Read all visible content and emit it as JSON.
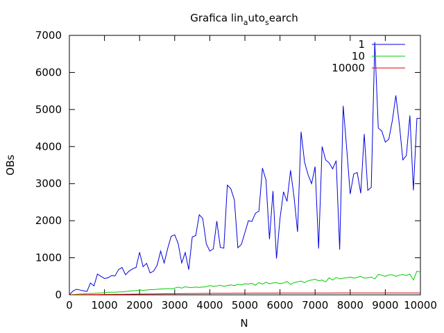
{
  "chart_data": {
    "type": "line",
    "title": "Grafica lin_auto_search",
    "title_parts": {
      "a": "Grafica lin",
      "sub1": "a",
      "b": "uto",
      "sub2": "s",
      "c": "earch"
    },
    "xlabel": "N",
    "ylabel": "OBs",
    "xlim": [
      0,
      10000
    ],
    "ylim": [
      0,
      7000
    ],
    "xticks": [
      0,
      1000,
      2000,
      3000,
      4000,
      5000,
      6000,
      7000,
      8000,
      9000,
      10000
    ],
    "yticks": [
      0,
      1000,
      2000,
      3000,
      4000,
      5000,
      6000,
      7000
    ],
    "grid": false,
    "legend_position": "top-right",
    "x": [
      0,
      100,
      200,
      300,
      400,
      500,
      600,
      700,
      800,
      900,
      1000,
      1100,
      1200,
      1300,
      1400,
      1500,
      1600,
      1700,
      1800,
      1900,
      2000,
      2100,
      2200,
      2300,
      2400,
      2500,
      2600,
      2700,
      2800,
      2900,
      3000,
      3100,
      3200,
      3300,
      3400,
      3500,
      3600,
      3700,
      3800,
      3900,
      4000,
      4100,
      4200,
      4300,
      4400,
      4500,
      4600,
      4700,
      4800,
      4900,
      5000,
      5100,
      5200,
      5300,
      5400,
      5500,
      5600,
      5700,
      5800,
      5900,
      6000,
      6100,
      6200,
      6300,
      6400,
      6500,
      6600,
      6700,
      6800,
      6900,
      7000,
      7100,
      7200,
      7300,
      7400,
      7500,
      7600,
      7700,
      7800,
      7900,
      8000,
      8100,
      8200,
      8300,
      8400,
      8500,
      8600,
      8700,
      8800,
      8900,
      9000,
      9100,
      9200,
      9300,
      9400,
      9500,
      9600,
      9700,
      9800,
      9900,
      10000
    ],
    "series": [
      {
        "name": "1",
        "color": "#0000dd",
        "values": [
          0,
          100,
          150,
          130,
          110,
          90,
          320,
          240,
          560,
          500,
          440,
          460,
          520,
          510,
          680,
          740,
          540,
          640,
          700,
          740,
          1150,
          760,
          850,
          590,
          640,
          800,
          1180,
          860,
          1250,
          1580,
          1620,
          1380,
          860,
          1140,
          680,
          1560,
          1600,
          2160,
          2060,
          1380,
          1180,
          1240,
          1990,
          1280,
          1260,
          2960,
          2860,
          2560,
          1270,
          1360,
          1680,
          2000,
          1980,
          2200,
          2260,
          3420,
          3100,
          1500,
          2800,
          980,
          2060,
          2780,
          2520,
          3360,
          2640,
          1700,
          4400,
          3580,
          3240,
          3000,
          3460,
          1250,
          4000,
          3640,
          3560,
          3400,
          3620,
          1220,
          5100,
          3950,
          2720,
          3260,
          3300,
          2740,
          4340,
          2820,
          2900,
          6820,
          4500,
          4420,
          4120,
          4200,
          4700,
          5380,
          4600,
          3640,
          3760,
          4840,
          2820,
          4760,
          4760
        ]
      },
      {
        "name": "10",
        "color": "#00cc00",
        "values": [
          0,
          8,
          15,
          20,
          25,
          30,
          40,
          40,
          50,
          50,
          60,
          70,
          70,
          70,
          80,
          80,
          90,
          100,
          110,
          110,
          130,
          120,
          130,
          140,
          140,
          150,
          160,
          160,
          170,
          160,
          180,
          210,
          180,
          220,
          200,
          200,
          210,
          200,
          210,
          220,
          250,
          230,
          240,
          260,
          230,
          250,
          270,
          250,
          280,
          270,
          300,
          290,
          310,
          260,
          330,
          290,
          340,
          300,
          320,
          330,
          300,
          320,
          360,
          280,
          330,
          350,
          370,
          330,
          380,
          400,
          420,
          380,
          400,
          350,
          460,
          400,
          470,
          430,
          450,
          460,
          480,
          450,
          470,
          500,
          450,
          460,
          480,
          430,
          550,
          530,
          500,
          540,
          540,
          500,
          530,
          550,
          520,
          560,
          400,
          640,
          610
        ]
      },
      {
        "name": "10000",
        "color": "#dd0000",
        "values": [
          0,
          1,
          2,
          3,
          4,
          5,
          6,
          7,
          8,
          9,
          10,
          11,
          12,
          13,
          14,
          15,
          16,
          17,
          18,
          19,
          20,
          21,
          22,
          23,
          24,
          25,
          26,
          27,
          28,
          29,
          30,
          31,
          32,
          33,
          34,
          35,
          36,
          37,
          38,
          39,
          40,
          41,
          41,
          42,
          42,
          43,
          43,
          44,
          44,
          45,
          45,
          45,
          46,
          46,
          46,
          47,
          47,
          47,
          47,
          48,
          48,
          48,
          48,
          48,
          49,
          49,
          49,
          49,
          49,
          50,
          50,
          50,
          50,
          50,
          50,
          50,
          51,
          51,
          51,
          51,
          51,
          51,
          51,
          51,
          52,
          52,
          52,
          52,
          52,
          52,
          52,
          52,
          52,
          52,
          52,
          52,
          52,
          52,
          52,
          52,
          52
        ]
      }
    ]
  }
}
